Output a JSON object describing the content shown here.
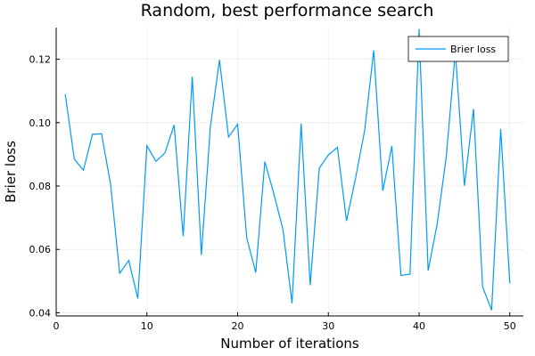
{
  "chart_data": {
    "type": "line",
    "title": "Random, best performance search",
    "xlabel": "Number of iterations",
    "ylabel": "Brier loss",
    "xlim": [
      0,
      51.5
    ],
    "ylim": [
      0.039,
      0.13
    ],
    "xticks": [
      0,
      10,
      20,
      30,
      40,
      50
    ],
    "yticks": [
      0.04,
      0.06,
      0.08,
      0.1,
      0.12
    ],
    "xtick_labels": [
      "0",
      "10",
      "20",
      "30",
      "40",
      "50"
    ],
    "ytick_labels": [
      "0.04",
      "0.06",
      "0.08",
      "0.10",
      "0.12"
    ],
    "grid": true,
    "legend_position": "top-right",
    "series": [
      {
        "name": "Brier loss",
        "color": "#009AFA",
        "x": [
          1,
          2,
          3,
          4,
          5,
          6,
          7,
          8,
          9,
          10,
          11,
          12,
          13,
          14,
          15,
          16,
          17,
          18,
          19,
          20,
          21,
          22,
          23,
          24,
          25,
          26,
          27,
          28,
          29,
          30,
          31,
          32,
          33,
          34,
          35,
          36,
          37,
          38,
          39,
          40,
          41,
          42,
          43,
          44,
          45,
          46,
          47,
          48,
          49,
          50
        ],
        "values": [
          0.109,
          0.0885,
          0.085,
          0.0963,
          0.0965,
          0.0805,
          0.0525,
          0.0565,
          0.0445,
          0.0927,
          0.0878,
          0.0905,
          0.0993,
          0.0641,
          0.1145,
          0.0582,
          0.0988,
          0.1198,
          0.0955,
          0.0995,
          0.0637,
          0.0527,
          0.0877,
          0.0775,
          0.0662,
          0.043,
          0.0997,
          0.0487,
          0.0856,
          0.0898,
          0.0922,
          0.069,
          0.0825,
          0.0975,
          0.1228,
          0.0785,
          0.0926,
          0.0518,
          0.0522,
          0.1295,
          0.0533,
          0.0681,
          0.0893,
          0.1225,
          0.0801,
          0.1043,
          0.0482,
          0.0408,
          0.098,
          0.0493
        ]
      }
    ]
  }
}
